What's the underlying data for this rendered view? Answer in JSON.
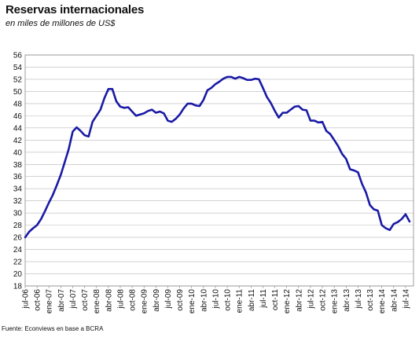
{
  "title": "Reservas internacionales",
  "subtitle": "en miles de millones de US$",
  "source": "Fuente:  Econviews en base a BCRA",
  "chart_data": {
    "type": "line",
    "title": "Reservas internacionales",
    "subtitle": "en miles de millones de US$",
    "xlabel": "",
    "ylabel": "",
    "ylim": [
      18,
      56
    ],
    "yticks": [
      18,
      20,
      22,
      24,
      26,
      28,
      30,
      32,
      34,
      36,
      38,
      40,
      42,
      44,
      46,
      48,
      50,
      52,
      54,
      56
    ],
    "xticks": [
      "jul-06",
      "oct-06",
      "ene-07",
      "abr-07",
      "jul-07",
      "oct-07",
      "ene-08",
      "abr-08",
      "jul-08",
      "oct-08",
      "ene-09",
      "abr-09",
      "jul-09",
      "oct-09",
      "ene-10",
      "abr-10",
      "jul-10",
      "oct-10",
      "ene-11",
      "abr-11",
      "jul-11",
      "oct-11",
      "ene-12",
      "abr-12",
      "jul-12",
      "oct-12",
      "ene-13",
      "abr-13",
      "jul-13",
      "oct-13",
      "ene-14",
      "abr-14",
      "jul-14"
    ],
    "grid": true,
    "line_color": "#1a1aa6",
    "series": [
      {
        "x": [
          "jul-06",
          "ago-06",
          "sep-06",
          "oct-06",
          "nov-06",
          "dic-06",
          "ene-07",
          "feb-07",
          "mar-07",
          "abr-07",
          "may-07",
          "jun-07",
          "jul-07",
          "ago-07",
          "sep-07",
          "oct-07",
          "nov-07",
          "dic-07",
          "ene-08",
          "feb-08",
          "mar-08",
          "abr-08",
          "may-08",
          "jun-08",
          "jul-08",
          "ago-08",
          "sep-08",
          "oct-08",
          "nov-08",
          "dic-08",
          "ene-09",
          "feb-09",
          "mar-09",
          "abr-09",
          "may-09",
          "jun-09",
          "jul-09",
          "ago-09",
          "sep-09",
          "oct-09",
          "nov-09",
          "dic-09",
          "ene-10",
          "feb-10",
          "mar-10",
          "abr-10",
          "may-10",
          "jun-10",
          "jul-10",
          "ago-10",
          "sep-10",
          "oct-10",
          "nov-10",
          "dic-10",
          "ene-11",
          "feb-11",
          "mar-11",
          "abr-11",
          "may-11",
          "jun-11",
          "jul-11",
          "ago-11",
          "sep-11",
          "oct-11",
          "nov-11",
          "dic-11",
          "ene-12",
          "feb-12",
          "mar-12",
          "abr-12",
          "may-12",
          "jun-12",
          "jul-12",
          "ago-12",
          "sep-12",
          "oct-12",
          "nov-12",
          "dic-12",
          "ene-13",
          "feb-13",
          "mar-13",
          "abr-13",
          "may-13",
          "jun-13",
          "jul-13",
          "ago-13",
          "sep-13",
          "oct-13",
          "nov-13",
          "dic-13",
          "ene-14",
          "feb-14",
          "mar-14",
          "abr-14",
          "may-14",
          "jun-14",
          "jul-14",
          "ago-14"
        ],
        "values": [
          26.0,
          26.9,
          27.5,
          28.0,
          29.0,
          30.3,
          31.7,
          33.0,
          34.6,
          36.3,
          38.4,
          40.5,
          43.4,
          44.1,
          43.5,
          42.8,
          42.6,
          45.0,
          46.0,
          47.0,
          48.9,
          50.4,
          50.4,
          48.4,
          47.5,
          47.3,
          47.4,
          46.7,
          46.0,
          46.2,
          46.4,
          46.8,
          47.0,
          46.5,
          46.7,
          46.4,
          45.2,
          45.0,
          45.5,
          46.2,
          47.2,
          48.0,
          48.0,
          47.7,
          47.6,
          48.6,
          50.2,
          50.6,
          51.2,
          51.6,
          52.1,
          52.4,
          52.4,
          52.1,
          52.4,
          52.2,
          51.9,
          51.9,
          52.1,
          52.0,
          50.6,
          49.1,
          48.1,
          46.8,
          45.7,
          46.5,
          46.5,
          47.0,
          47.5,
          47.6,
          47.0,
          46.9,
          45.2,
          45.2,
          44.9,
          45.0,
          43.5,
          43.0,
          42.0,
          41.0,
          39.7,
          38.9,
          37.2,
          37.0,
          36.7,
          34.8,
          33.4,
          31.3,
          30.6,
          30.4,
          28.0,
          27.5,
          27.2,
          28.2,
          28.5,
          29.0,
          29.8,
          28.6
        ]
      }
    ]
  }
}
